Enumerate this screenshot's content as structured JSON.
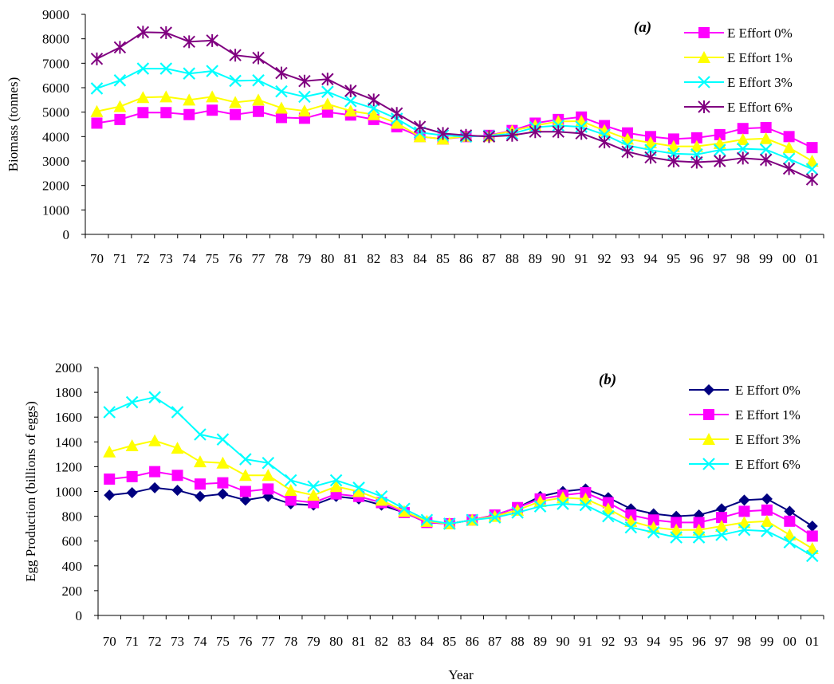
{
  "chart_data": [
    {
      "type": "line",
      "panel_label": "(a)",
      "xlabel": "",
      "ylabel": "Biomass (tonnes)",
      "ylim": [
        0,
        9000
      ],
      "yticks": [
        0,
        1000,
        2000,
        3000,
        4000,
        5000,
        6000,
        7000,
        8000,
        9000
      ],
      "categories": [
        "70",
        "71",
        "72",
        "73",
        "74",
        "75",
        "76",
        "77",
        "78",
        "79",
        "80",
        "81",
        "82",
        "83",
        "84",
        "85",
        "86",
        "87",
        "88",
        "89",
        "90",
        "91",
        "92",
        "93",
        "94",
        "95",
        "96",
        "97",
        "98",
        "99",
        "00",
        "01"
      ],
      "legend_position": "top-right",
      "grid": false,
      "series": [
        {
          "name": "E Effort 0%",
          "color": "#ff00ff",
          "marker": "square",
          "values": [
            4550,
            4700,
            4980,
            4980,
            4900,
            5080,
            4900,
            5030,
            4780,
            4750,
            5000,
            4880,
            4700,
            4400,
            4000,
            3900,
            4000,
            4050,
            4250,
            4550,
            4700,
            4800,
            4450,
            4150,
            4000,
            3900,
            3950,
            4080,
            4330,
            4370,
            4000,
            3550
          ]
        },
        {
          "name": "E Effort 1%",
          "color": "#ffff00",
          "marker": "triangle",
          "values": [
            5030,
            5230,
            5600,
            5630,
            5500,
            5630,
            5400,
            5500,
            5170,
            5050,
            5330,
            5050,
            4900,
            4550,
            4000,
            3900,
            4020,
            4030,
            4230,
            4450,
            4620,
            4630,
            4250,
            3900,
            3750,
            3600,
            3600,
            3720,
            3880,
            3920,
            3550,
            3000
          ]
        },
        {
          "name": "E Effort 3%",
          "color": "#00ffff",
          "marker": "x",
          "values": [
            5970,
            6300,
            6780,
            6780,
            6580,
            6680,
            6280,
            6300,
            5850,
            5630,
            5830,
            5450,
            5150,
            4730,
            4170,
            4050,
            4000,
            4030,
            4120,
            4380,
            4450,
            4400,
            4080,
            3640,
            3450,
            3300,
            3270,
            3450,
            3500,
            3470,
            3090,
            2670
          ]
        },
        {
          "name": "E Effort 6%",
          "color": "#800080",
          "marker": "star",
          "values": [
            7180,
            7650,
            8270,
            8250,
            7880,
            7930,
            7330,
            7220,
            6600,
            6270,
            6350,
            5870,
            5500,
            4950,
            4400,
            4130,
            4050,
            4000,
            4050,
            4200,
            4200,
            4130,
            3780,
            3380,
            3150,
            3000,
            2950,
            3000,
            3120,
            3050,
            2690,
            2250
          ]
        }
      ]
    },
    {
      "type": "line",
      "panel_label": "(b)",
      "xlabel": "Year",
      "ylabel": "Egg Production (billions of eggs)",
      "ylim": [
        0,
        2000
      ],
      "yticks": [
        0,
        200,
        400,
        600,
        800,
        1000,
        1200,
        1400,
        1600,
        1800,
        2000
      ],
      "categories": [
        "70",
        "71",
        "72",
        "73",
        "74",
        "75",
        "76",
        "77",
        "78",
        "79",
        "80",
        "81",
        "82",
        "83",
        "84",
        "85",
        "86",
        "87",
        "88",
        "89",
        "90",
        "91",
        "92",
        "93",
        "94",
        "95",
        "96",
        "97",
        "98",
        "99",
        "00",
        "01"
      ],
      "legend_position": "top-right",
      "grid": false,
      "series": [
        {
          "name": "E Effort 0%",
          "color": "#000080",
          "marker": "diamond",
          "values": [
            970,
            990,
            1030,
            1010,
            960,
            980,
            930,
            960,
            900,
            890,
            960,
            940,
            890,
            830,
            750,
            740,
            770,
            810,
            870,
            960,
            1000,
            1020,
            950,
            860,
            820,
            800,
            810,
            860,
            930,
            940,
            840,
            720
          ]
        },
        {
          "name": "E Effort 1%",
          "color": "#ff00ff",
          "marker": "square",
          "values": [
            1100,
            1120,
            1160,
            1130,
            1060,
            1070,
            1000,
            1020,
            930,
            910,
            980,
            960,
            910,
            830,
            750,
            740,
            770,
            810,
            870,
            940,
            970,
            990,
            910,
            810,
            770,
            750,
            750,
            790,
            840,
            850,
            760,
            640
          ]
        },
        {
          "name": "E Effort 3%",
          "color": "#ffff00",
          "marker": "triangle",
          "values": [
            1320,
            1370,
            1410,
            1350,
            1240,
            1230,
            1130,
            1130,
            1010,
            970,
            1040,
            1000,
            930,
            840,
            760,
            740,
            770,
            800,
            850,
            920,
            950,
            940,
            860,
            760,
            710,
            690,
            690,
            720,
            750,
            760,
            650,
            540
          ]
        },
        {
          "name": "E Effort 6%",
          "color": "#00ffff",
          "marker": "x",
          "values": [
            1640,
            1720,
            1760,
            1640,
            1460,
            1420,
            1260,
            1230,
            1090,
            1040,
            1090,
            1030,
            960,
            860,
            770,
            740,
            770,
            790,
            830,
            880,
            900,
            890,
            800,
            710,
            670,
            630,
            630,
            650,
            690,
            680,
            590,
            480
          ]
        }
      ]
    }
  ]
}
